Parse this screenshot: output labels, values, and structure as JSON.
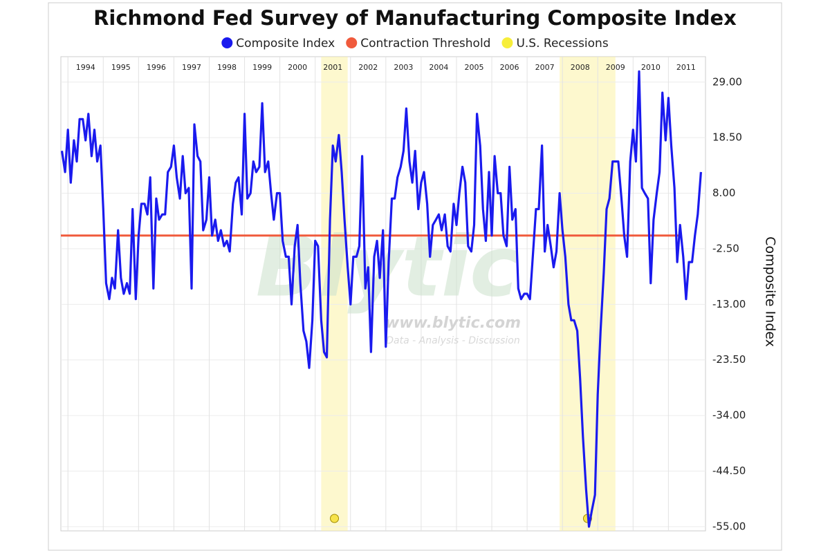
{
  "chart_data": {
    "type": "line",
    "title": "Richmond Fed Survey of Manufacturing Composite Index",
    "y_label": "Composite Index",
    "watermark": {
      "logo": "Blytic",
      "url": "www.blytic.com",
      "tagline": "Data - Analysis - Discussion"
    },
    "xlim": [
      1993.8,
      2012.05
    ],
    "xticks": [
      1994,
      1995,
      1996,
      1997,
      1998,
      1999,
      2000,
      2001,
      2002,
      2003,
      2004,
      2005,
      2006,
      2007,
      2008,
      2009,
      2010,
      2011
    ],
    "ylim": [
      -55.8,
      33.8
    ],
    "yticks": [
      {
        "value": 29,
        "label": "29.00"
      },
      {
        "value": 18.5,
        "label": "18.50"
      },
      {
        "value": 8,
        "label": "8.00"
      },
      {
        "value": -2.5,
        "label": "-2.50"
      },
      {
        "value": -13,
        "label": "-13.00"
      },
      {
        "value": -23.5,
        "label": "-23.50"
      },
      {
        "value": -34,
        "label": "-34.00"
      },
      {
        "value": -44.5,
        "label": "-44.50"
      },
      {
        "value": -55,
        "label": "-55.00"
      }
    ],
    "grid": true,
    "legend": "top",
    "threshold": {
      "name": "Contraction Threshold",
      "value": 0,
      "color": "#f05a3c"
    },
    "recessions": {
      "name": "U.S. Recessions",
      "color": "#fbf3a6",
      "periods": [
        [
          2001.17,
          2001.92
        ],
        [
          2007.92,
          2009.5
        ]
      ]
    },
    "x": [
      1993.83,
      1993.92,
      1994,
      1994.08,
      1994.17,
      1994.25,
      1994.33,
      1994.42,
      1994.5,
      1994.58,
      1994.67,
      1994.75,
      1994.83,
      1994.92,
      1995,
      1995.08,
      1995.17,
      1995.25,
      1995.33,
      1995.42,
      1995.5,
      1995.58,
      1995.67,
      1995.75,
      1995.83,
      1995.92,
      1996,
      1996.08,
      1996.17,
      1996.25,
      1996.33,
      1996.42,
      1996.5,
      1996.58,
      1996.67,
      1996.75,
      1996.83,
      1996.92,
      1997,
      1997.08,
      1997.17,
      1997.25,
      1997.33,
      1997.42,
      1997.5,
      1997.58,
      1997.67,
      1997.75,
      1997.83,
      1997.92,
      1998,
      1998.08,
      1998.17,
      1998.25,
      1998.33,
      1998.42,
      1998.5,
      1998.58,
      1998.67,
      1998.75,
      1998.83,
      1998.92,
      1999,
      1999.08,
      1999.17,
      1999.25,
      1999.33,
      1999.42,
      1999.5,
      1999.58,
      1999.67,
      1999.75,
      1999.83,
      1999.92,
      2000,
      2000.08,
      2000.17,
      2000.25,
      2000.33,
      2000.42,
      2000.5,
      2000.58,
      2000.67,
      2000.75,
      2000.83,
      2000.92,
      2001,
      2001.08,
      2001.17,
      2001.25,
      2001.33,
      2001.42,
      2001.5,
      2001.58,
      2001.67,
      2001.75,
      2001.83,
      2001.92,
      2002,
      2002.08,
      2002.17,
      2002.25,
      2002.33,
      2002.42,
      2002.5,
      2002.58,
      2002.67,
      2002.75,
      2002.83,
      2002.92,
      2003,
      2003.08,
      2003.17,
      2003.25,
      2003.33,
      2003.42,
      2003.5,
      2003.58,
      2003.67,
      2003.75,
      2003.83,
      2003.92,
      2004,
      2004.08,
      2004.17,
      2004.25,
      2004.33,
      2004.42,
      2004.5,
      2004.58,
      2004.67,
      2004.75,
      2004.83,
      2004.92,
      2005,
      2005.08,
      2005.17,
      2005.25,
      2005.33,
      2005.42,
      2005.5,
      2005.58,
      2005.67,
      2005.75,
      2005.83,
      2005.92,
      2006,
      2006.08,
      2006.17,
      2006.25,
      2006.33,
      2006.42,
      2006.5,
      2006.58,
      2006.67,
      2006.75,
      2006.83,
      2006.92,
      2007,
      2007.08,
      2007.17,
      2007.25,
      2007.33,
      2007.42,
      2007.5,
      2007.58,
      2007.67,
      2007.75,
      2007.83,
      2007.92,
      2008,
      2008.08,
      2008.17,
      2008.25,
      2008.33,
      2008.42,
      2008.5,
      2008.58,
      2008.67,
      2008.75,
      2008.83,
      2008.92,
      2009,
      2009.08,
      2009.17,
      2009.25,
      2009.33,
      2009.42,
      2009.5,
      2009.58,
      2009.67,
      2009.75,
      2009.83,
      2009.92,
      2010,
      2010.08,
      2010.17,
      2010.25,
      2010.33,
      2010.42,
      2010.5,
      2010.58,
      2010.67,
      2010.75,
      2010.83,
      2010.92,
      2011,
      2011.08,
      2011.17,
      2011.25,
      2011.33,
      2011.42,
      2011.5,
      2011.58,
      2011.67,
      2011.75,
      2011.83,
      2011.92
    ],
    "series": [
      {
        "name": "Composite Index",
        "color": "#1a1aee",
        "values": [
          16,
          12,
          20,
          10,
          18,
          14,
          22,
          22,
          18,
          23,
          15,
          20,
          14,
          17,
          5,
          -9,
          -12,
          -8,
          -10,
          1,
          -8,
          -11,
          -9,
          -11,
          5,
          -12,
          0,
          6,
          6,
          4,
          11,
          -10,
          7,
          3,
          4,
          4,
          12,
          13,
          17,
          11,
          7,
          15,
          8,
          9,
          -10,
          21,
          15,
          14,
          1,
          3,
          11,
          0,
          3,
          -1,
          1,
          -2,
          -1,
          -3,
          6,
          10,
          11,
          4,
          23,
          7,
          8,
          14,
          12,
          13,
          25,
          12,
          14,
          8,
          3,
          8,
          8,
          -1,
          -4,
          -4,
          -13,
          -2,
          2,
          -9,
          -18,
          -20,
          -25,
          -16,
          -1,
          -2,
          -16,
          -22,
          -23,
          3,
          17,
          14,
          19,
          12,
          3,
          -6,
          -13,
          -4,
          -4,
          -2,
          15,
          -10,
          -6,
          -22,
          -4,
          -1,
          -8,
          1,
          -21,
          -5,
          7,
          7,
          11,
          13,
          16,
          24,
          14,
          10,
          16,
          5,
          10,
          12,
          6,
          -4,
          2,
          3,
          4,
          1,
          4,
          -2,
          -3,
          6,
          2,
          8,
          13,
          10,
          -2,
          -3,
          2,
          23,
          17,
          5,
          -1,
          12,
          0,
          15,
          8,
          8,
          0,
          -2,
          13,
          3,
          5,
          -10,
          -12,
          -11,
          -11,
          -12,
          -3,
          5,
          5,
          17,
          -3,
          2,
          -2,
          -6,
          -3,
          8,
          1,
          -4,
          -13,
          -16,
          -16,
          -18,
          -27,
          -38,
          -48,
          -55,
          -52,
          -49,
          -30,
          -18,
          -7,
          5,
          7,
          14,
          14,
          14,
          7,
          0,
          -4,
          14,
          20,
          14,
          31,
          9,
          8,
          7,
          -9,
          3,
          8,
          12,
          27,
          18,
          26,
          17,
          9,
          -5,
          2,
          -4,
          -12,
          -5,
          -5,
          0,
          4,
          12
        ]
      }
    ]
  }
}
